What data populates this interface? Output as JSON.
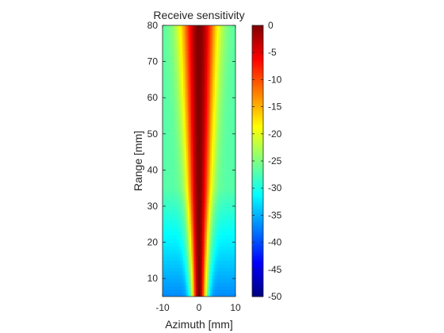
{
  "chart_data": {
    "type": "heatmap",
    "title": "Receive sensitivity",
    "xlabel": "Azimuth [mm]",
    "ylabel": "Range [mm]",
    "xlim": [
      -10,
      10
    ],
    "ylim": [
      5,
      80
    ],
    "x_ticks": [
      -10,
      0,
      10
    ],
    "y_ticks": [
      10,
      20,
      30,
      40,
      50,
      60,
      70,
      80
    ],
    "colormap": "jet",
    "colorbar": {
      "clim": [
        -50,
        0
      ],
      "ticks": [
        0,
        -5,
        -10,
        -15,
        -20,
        -25,
        -30,
        -35,
        -40,
        -45,
        -50
      ]
    },
    "description_values": {
      "beam_center_azimuth": 0,
      "peak_db": 0,
      "edge_db_at_80mm": -27,
      "edge_db_at_5mm": -37
    }
  }
}
